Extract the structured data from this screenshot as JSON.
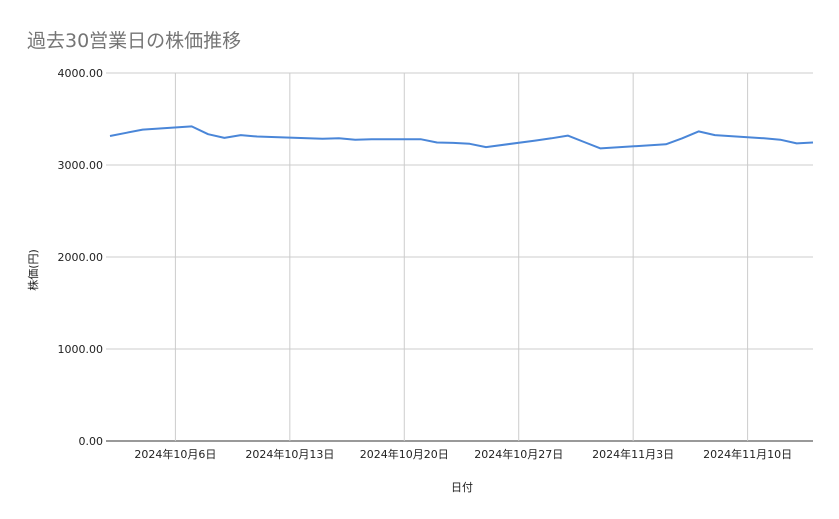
{
  "chart_data": {
    "type": "line",
    "title": "過去30営業日の株価推移",
    "xlabel": "日付",
    "ylabel": "株価(円)",
    "ylim": [
      0,
      4000
    ],
    "xlim": [
      "2024-10-02",
      "2024-11-14"
    ],
    "yticks": [
      "0.00",
      "1000.00",
      "2000.00",
      "3000.00",
      "4000.00"
    ],
    "xticks": [
      {
        "date": "2024-10-06",
        "label": "2024年10月6日"
      },
      {
        "date": "2024-10-13",
        "label": "2024年10月13日"
      },
      {
        "date": "2024-10-20",
        "label": "2024年10月20日"
      },
      {
        "date": "2024-10-27",
        "label": "2024年10月27日"
      },
      {
        "date": "2024-11-03",
        "label": "2024年11月3日"
      },
      {
        "date": "2024-11-10",
        "label": "2024年11月10日"
      }
    ],
    "grid": true,
    "legend": "none",
    "series": [
      {
        "color": "#4a86d8",
        "x": [
          "2024-10-02",
          "2024-10-03",
          "2024-10-04",
          "2024-10-07",
          "2024-10-08",
          "2024-10-09",
          "2024-10-10",
          "2024-10-11",
          "2024-10-15",
          "2024-10-16",
          "2024-10-17",
          "2024-10-18",
          "2024-10-21",
          "2024-10-22",
          "2024-10-23",
          "2024-10-24",
          "2024-10-25",
          "2024-10-28",
          "2024-10-29",
          "2024-10-30",
          "2024-10-31",
          "2024-11-01",
          "2024-11-05",
          "2024-11-06",
          "2024-11-07",
          "2024-11-08",
          "2024-11-11",
          "2024-11-12",
          "2024-11-13",
          "2024-11-14"
        ],
        "y": [
          3315,
          3350,
          3385,
          3420,
          3335,
          3295,
          3325,
          3310,
          3285,
          3290,
          3275,
          3280,
          3280,
          3245,
          3240,
          3230,
          3195,
          3265,
          3290,
          3320,
          3250,
          3180,
          3225,
          3290,
          3365,
          3325,
          3290,
          3275,
          3235,
          3245
        ]
      }
    ]
  }
}
